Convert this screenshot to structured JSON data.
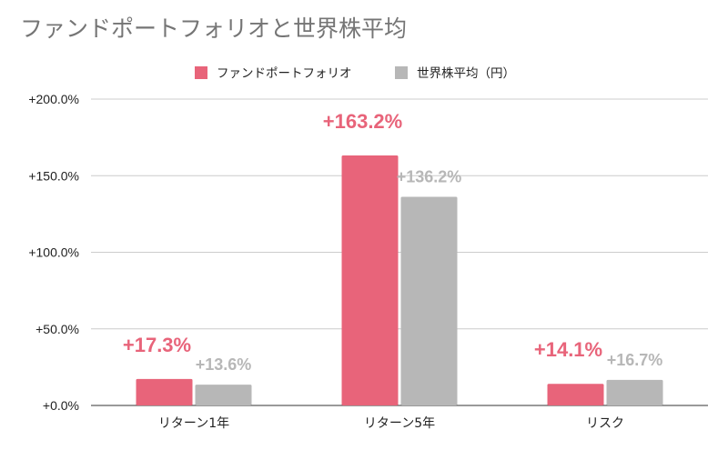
{
  "chart_data": {
    "type": "bar",
    "title": "ファンドポートフォリオと世界株平均",
    "categories": [
      "リターン1年",
      "リターン5年",
      "リスク"
    ],
    "series": [
      {
        "name": "ファンドポートフォリオ",
        "color": "#e8647a",
        "values": [
          17.3,
          163.2,
          14.1
        ],
        "labels": [
          "+17.3%",
          "+163.2%",
          "+14.1%"
        ]
      },
      {
        "name": "世界株平均（円）",
        "color": "#b7b7b7",
        "values": [
          13.6,
          136.2,
          16.7
        ],
        "labels": [
          "+13.6%",
          "+136.2%",
          "+16.7%"
        ]
      }
    ],
    "ylim": [
      0,
      200
    ],
    "yticks": [
      0,
      50,
      100,
      150,
      200
    ],
    "ytick_labels": [
      "+0.0%",
      "+50.0%",
      "+100.0%",
      "+150.0%",
      "+200.0%"
    ],
    "xlabel": "",
    "ylabel": "",
    "grid": true,
    "legend": "top-center"
  }
}
